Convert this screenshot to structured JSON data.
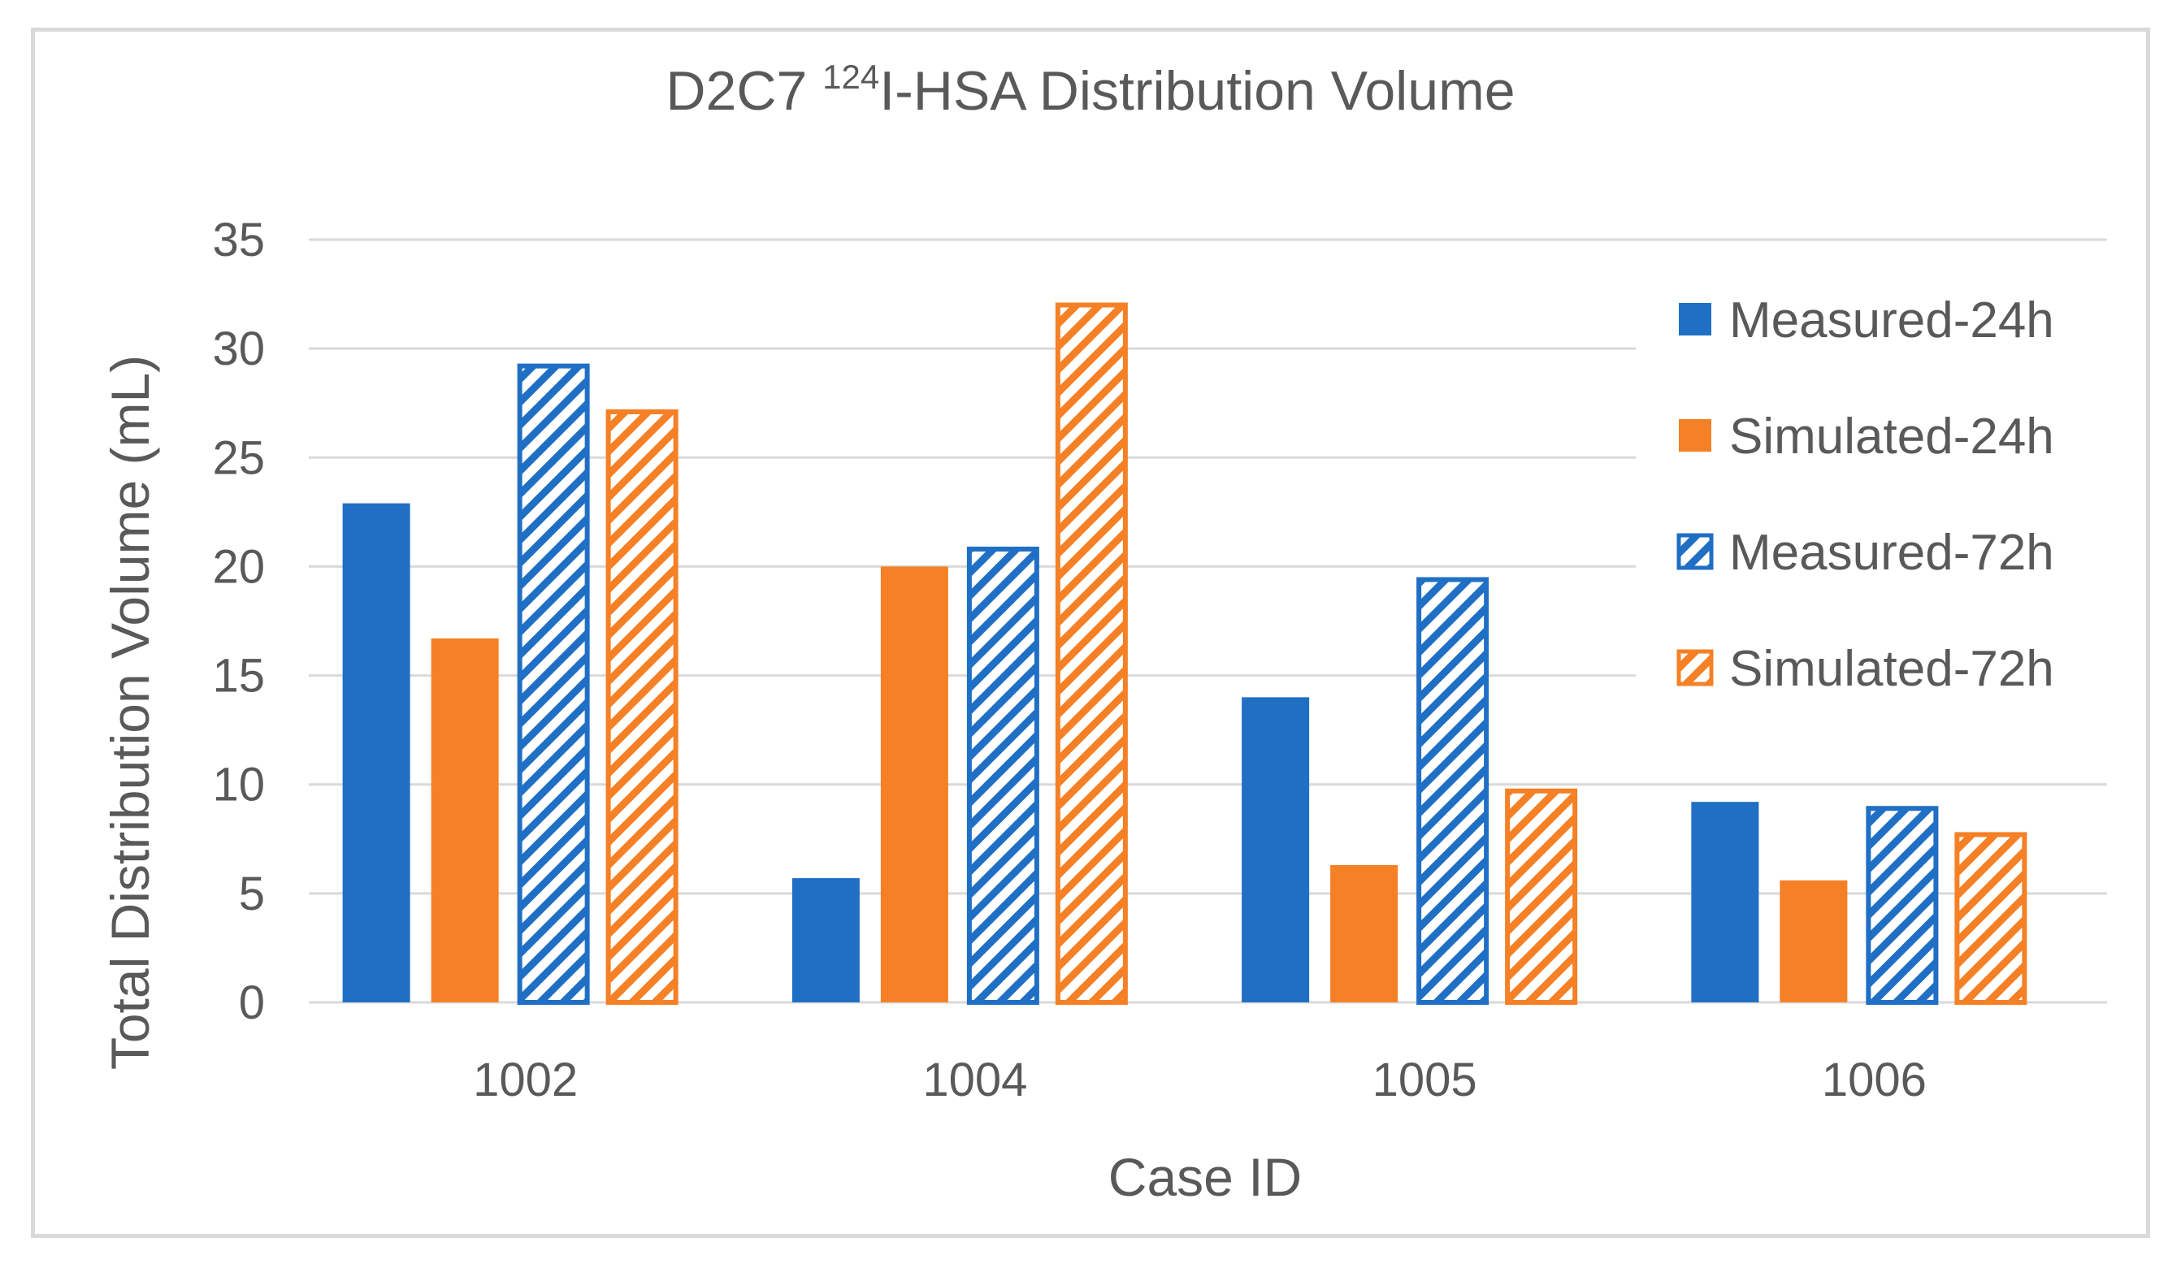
{
  "chart_data": {
    "type": "bar",
    "title": "D2C7 124I-HSA Distribution Volume",
    "title_parts": {
      "prefix": "D2C7 ",
      "superscript": "124",
      "suffix": "I-HSA Distribution Volume"
    },
    "xlabel": "Case ID",
    "ylabel": "Total Distribution Volume (mL)",
    "categories": [
      "1002",
      "1004",
      "1005",
      "1006"
    ],
    "ylim": [
      0,
      35
    ],
    "yticks": [
      "0",
      "5",
      "10",
      "15",
      "20",
      "25",
      "30",
      "35"
    ],
    "grid": true,
    "legend_position": "right",
    "series": [
      {
        "name": "Measured-24h",
        "color": "#1f6fc5",
        "pattern": "solid",
        "values": [
          22.9,
          5.7,
          14.0,
          9.2
        ]
      },
      {
        "name": "Simulated-24h",
        "color": "#f58025",
        "pattern": "solid",
        "values": [
          16.7,
          20.0,
          6.3,
          5.6
        ]
      },
      {
        "name": "Measured-72h",
        "color": "#1f6fc5",
        "pattern": "hatched",
        "values": [
          29.2,
          20.8,
          19.4,
          8.9
        ]
      },
      {
        "name": "Simulated-72h",
        "color": "#f58025",
        "pattern": "hatched",
        "values": [
          27.1,
          32.0,
          9.7,
          7.7
        ]
      }
    ]
  }
}
